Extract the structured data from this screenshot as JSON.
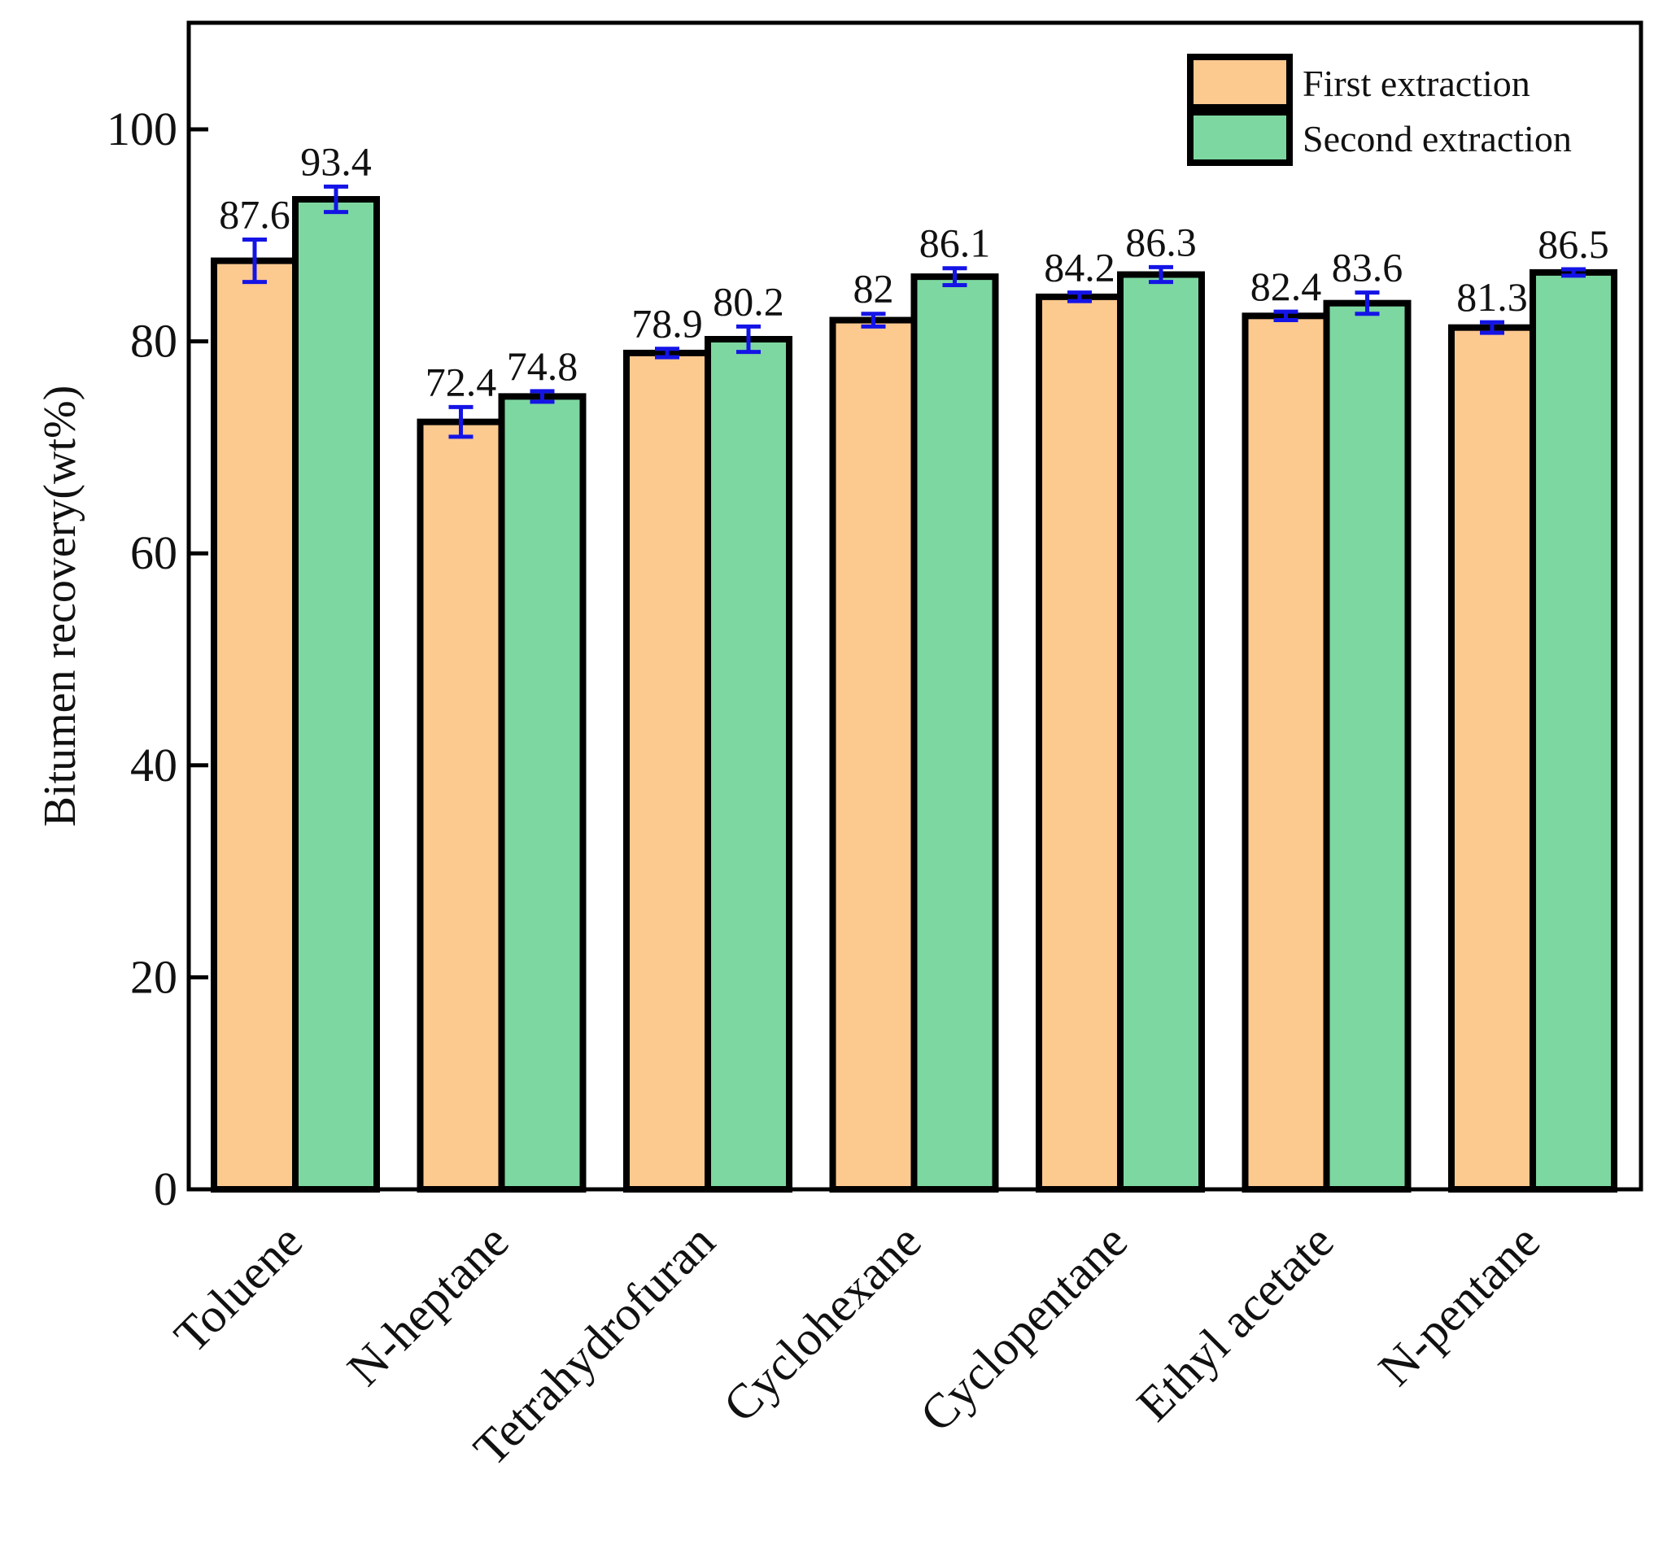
{
  "chart_data": {
    "type": "bar",
    "title": "",
    "xlabel": "",
    "ylabel": "Bitumen recovery(wt%)",
    "ylim": [
      0,
      110
    ],
    "yticks": [
      0,
      20,
      40,
      60,
      80,
      100
    ],
    "ytick_labels": [
      "0",
      "20",
      "40",
      "60",
      "80",
      "100"
    ],
    "grid": false,
    "legend_position": "top-right",
    "categories": [
      "Toluene",
      "N-heptane",
      "Tetrahydrofuran",
      "Cyclohexane",
      "Cyclopentane",
      "Ethyl acetate",
      "N-pentane"
    ],
    "series": [
      {
        "name": "First extraction",
        "color": "#fcc98f",
        "values": [
          87.6,
          72.4,
          78.9,
          82,
          84.2,
          82.4,
          81.3
        ],
        "labels": [
          "87.6",
          "72.4",
          "78.9",
          "82",
          "84.2",
          "82.4",
          "81.3"
        ],
        "errors": [
          2.0,
          1.4,
          0.4,
          0.6,
          0.4,
          0.4,
          0.5
        ]
      },
      {
        "name": "Second extraction",
        "color": "#7dd7a0",
        "values": [
          93.4,
          74.8,
          80.2,
          86.1,
          86.3,
          83.6,
          86.5
        ],
        "labels": [
          "93.4",
          "74.8",
          "80.2",
          "86.1",
          "86.3",
          "83.6",
          "86.5"
        ],
        "errors": [
          1.2,
          0.5,
          1.2,
          0.8,
          0.7,
          1.0,
          0.3
        ]
      }
    ],
    "error_bar_color": "#1414e6",
    "bar_edge_color": "#000000"
  }
}
